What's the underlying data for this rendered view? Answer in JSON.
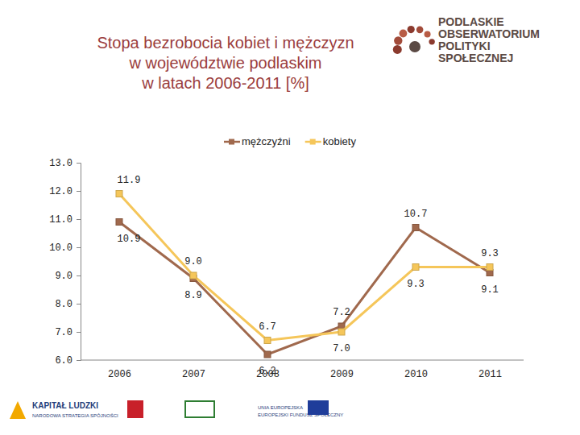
{
  "chart_data": {
    "type": "line",
    "title": "Stopa bezrobocia kobiet i mężczyzn w województwie podlaskim w latach 2006-2011 [%]",
    "categories": [
      "2006",
      "2007",
      "2008",
      "2009",
      "2010",
      "2011"
    ],
    "series": [
      {
        "name": "mężczyźni",
        "color": "#a0694d",
        "marker": "square",
        "values": [
          10.9,
          8.9,
          6.2,
          7.2,
          10.7,
          9.1
        ],
        "value_labels": [
          "10.9",
          "8.9",
          "6.2",
          "7.2",
          "10.7",
          "9.1"
        ]
      },
      {
        "name": "kobiety",
        "color": "#f5c65a",
        "marker": "square",
        "values": [
          11.9,
          9.0,
          6.7,
          7.0,
          9.3,
          9.3
        ],
        "value_labels": [
          "11.9",
          "9.0",
          "6.7",
          "7.0",
          "9.3",
          "9.3"
        ]
      }
    ],
    "ylim": [
      6,
      13
    ],
    "yticks": [
      {
        "value": 6,
        "label": "6.0"
      },
      {
        "value": 7,
        "label": "7.0"
      },
      {
        "value": 8,
        "label": "8.0"
      },
      {
        "value": 9,
        "label": "9.0"
      },
      {
        "value": 10,
        "label": "10.0"
      },
      {
        "value": 11,
        "label": "11.0"
      },
      {
        "value": 12,
        "label": "12.0"
      },
      {
        "value": 13,
        "label": "13.0"
      }
    ],
    "grid": false,
    "legend": "top",
    "data_labels": true
  },
  "header": {
    "logo": [
      "PODLASKIE",
      "OBSERWATORIUM",
      "POLITYKI",
      "SPOŁECZNEJ"
    ]
  },
  "footer": {
    "logos": [
      "KAPITAŁ LUDZKI",
      "NARODOWA STRATEGIA SPÓJNOŚCI",
      "UNIA EUROPEJSKA",
      "EUROPEJSKI FUNDUSZ SPOŁECZNY"
    ]
  }
}
